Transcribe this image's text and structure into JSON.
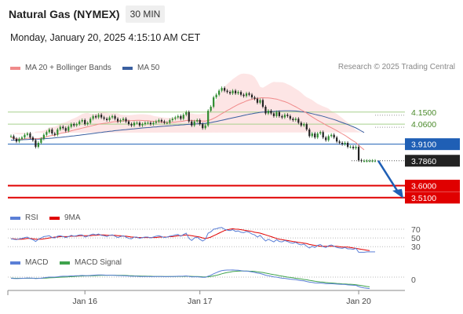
{
  "header": {
    "title": "Natural Gas (NYMEX)",
    "timeframe": "30 MIN",
    "datetime": "Monday, January 20, 2025 4:15:10 AM CET"
  },
  "legend": {
    "ma20": "MA 20 + Bollinger Bands",
    "ma50": "MA 50",
    "research": "Research © 2025 Trading Central",
    "rsi": "RSI",
    "rsi_ma": "9MA",
    "macd": "MACD",
    "macd_signal": "MACD Signal"
  },
  "colors": {
    "ma20": "#f08a8a",
    "ma50": "#3a5fa0",
    "bollinger": "#fde0e0",
    "support": "#e00000",
    "resistance": "#a8d08d",
    "pivot": "#1f5fb5",
    "rsi": "#5b7fd6",
    "rsi_ma": "#e00000",
    "macd": "#5b7fd6",
    "macd_signal": "#3fa34d",
    "candle_up": "#2e8b2e",
    "candle_down": "#222222"
  },
  "chart_data": {
    "type": "candlestick",
    "x_ticks": [
      "Jan 16",
      "Jan 17",
      "Jan 20"
    ],
    "ylim": [
      3.45,
      4.36
    ],
    "levels": [
      {
        "label": "4.1500",
        "value": 4.15,
        "kind": "resistance"
      },
      {
        "label": "4.0600",
        "value": 4.06,
        "kind": "resistance"
      },
      {
        "label": "3.9100",
        "value": 3.91,
        "kind": "pivot"
      },
      {
        "label": "3.7860",
        "value": 3.786,
        "kind": "last"
      },
      {
        "label": "3.6000",
        "value": 3.6,
        "kind": "support"
      },
      {
        "label": "3.5100",
        "value": 3.51,
        "kind": "support"
      }
    ],
    "close": [
      3.97,
      3.95,
      3.93,
      3.95,
      3.96,
      3.98,
      3.99,
      3.96,
      3.94,
      3.89,
      3.92,
      3.95,
      3.98,
      4.0,
      4.02,
      3.99,
      3.98,
      4.02,
      4.04,
      4.03,
      4.01,
      4.04,
      4.06,
      4.05,
      4.06,
      4.08,
      4.09,
      4.06,
      4.07,
      4.1,
      4.12,
      4.11,
      4.13,
      4.11,
      4.1,
      4.09,
      4.11,
      4.12,
      4.1,
      4.08,
      4.09,
      4.1,
      4.08,
      4.06,
      4.05,
      4.07,
      4.07,
      4.05,
      4.06,
      4.07,
      4.07,
      4.06,
      4.07,
      4.08,
      4.09,
      4.08,
      4.07,
      4.07,
      4.09,
      4.1,
      4.11,
      4.12,
      4.1,
      4.13,
      4.15,
      4.08,
      4.05,
      4.08,
      4.09,
      4.06,
      4.03,
      4.05,
      4.16,
      4.19,
      4.26,
      4.28,
      4.31,
      4.33,
      4.31,
      4.3,
      4.29,
      4.31,
      4.29,
      4.3,
      4.28,
      4.27,
      4.29,
      4.28,
      4.26,
      4.25,
      4.22,
      4.24,
      4.19,
      4.14,
      4.16,
      4.14,
      4.12,
      4.15,
      4.12,
      4.11,
      4.13,
      4.12,
      4.1,
      4.09,
      4.1,
      4.07,
      4.05,
      4.06,
      4.02,
      3.97,
      3.99,
      3.96,
      3.99,
      4.0,
      3.96,
      3.94,
      3.97,
      3.98,
      3.96,
      3.93,
      3.92,
      3.91,
      3.92,
      3.89,
      3.89,
      3.88,
      3.89,
      3.79,
      3.785,
      3.785,
      3.786,
      3.786,
      3.786,
      3.786
    ],
    "ma20": [
      3.96,
      3.955,
      3.95,
      3.948,
      3.948,
      3.95,
      3.955,
      3.955,
      3.953,
      3.95,
      3.952,
      3.955,
      3.96,
      3.965,
      3.972,
      3.975,
      3.978,
      3.985,
      3.99,
      3.995,
      3.998,
      4.003,
      4.01,
      4.015,
      4.02,
      4.025,
      4.03,
      4.035,
      4.04,
      4.045,
      4.05,
      4.055,
      4.06,
      4.063,
      4.066,
      4.068,
      4.072,
      4.076,
      4.078,
      4.08,
      4.082,
      4.084,
      4.085,
      4.086,
      4.086,
      4.087,
      4.088,
      4.088,
      4.087,
      4.086,
      4.085,
      4.083,
      4.081,
      4.079,
      4.077,
      4.075,
      4.073,
      4.072,
      4.072,
      4.073,
      4.075,
      4.078,
      4.08,
      4.083,
      4.087,
      4.088,
      4.087,
      4.086,
      4.086,
      4.085,
      4.083,
      4.083,
      4.087,
      4.093,
      4.103,
      4.113,
      4.125,
      4.138,
      4.15,
      4.162,
      4.173,
      4.185,
      4.196,
      4.207,
      4.216,
      4.224,
      4.233,
      4.24,
      4.245,
      4.25,
      4.252,
      4.256,
      4.257,
      4.256,
      4.256,
      4.254,
      4.25,
      4.247,
      4.241,
      4.234,
      4.228,
      4.22,
      4.211,
      4.2,
      4.19,
      4.178,
      4.166,
      4.155,
      4.142,
      4.127,
      4.114,
      4.101,
      4.089,
      4.078,
      4.066,
      4.054,
      4.043,
      4.033,
      4.022,
      4.011,
      3.999,
      3.987,
      3.976,
      3.962,
      3.948,
      3.935,
      3.922,
      3.902,
      3.884,
      3.868
    ],
    "ma50": [
      3.94,
      3.94,
      3.941,
      3.942,
      3.943,
      3.944,
      3.945,
      3.946,
      3.947,
      3.947,
      3.948,
      3.949,
      3.95,
      3.952,
      3.954,
      3.955,
      3.957,
      3.959,
      3.961,
      3.963,
      3.965,
      3.967,
      3.97,
      3.972,
      3.975,
      3.977,
      3.98,
      3.982,
      3.985,
      3.987,
      3.99,
      3.993,
      3.996,
      3.998,
      4.001,
      4.003,
      4.006,
      4.008,
      4.011,
      4.013,
      4.015,
      4.017,
      4.019,
      4.021,
      4.023,
      4.025,
      4.027,
      4.029,
      4.031,
      4.033,
      4.034,
      4.036,
      4.038,
      4.039,
      4.041,
      4.043,
      4.044,
      4.046,
      4.047,
      4.049,
      4.051,
      4.052,
      4.054,
      4.055,
      4.057,
      4.058,
      4.059,
      4.061,
      4.062,
      4.063,
      4.064,
      4.066,
      4.069,
      4.072,
      4.076,
      4.08,
      4.084,
      4.089,
      4.093,
      4.098,
      4.102,
      4.107,
      4.111,
      4.116,
      4.12,
      4.125,
      4.129,
      4.134,
      4.137,
      4.141,
      4.144,
      4.148,
      4.15,
      4.151,
      4.153,
      4.154,
      4.155,
      4.157,
      4.158,
      4.159,
      4.16,
      4.16,
      4.16,
      4.159,
      4.158,
      4.156,
      4.153,
      4.151,
      4.148,
      4.143,
      4.138,
      4.133,
      4.128,
      4.124,
      4.118,
      4.112,
      4.106,
      4.1,
      4.094,
      4.087,
      4.079,
      4.072,
      4.064,
      4.057,
      4.048,
      4.04,
      4.031,
      4.02,
      4.008,
      3.997
    ],
    "rsi": [
      48,
      47,
      46,
      48,
      49,
      51,
      52,
      48,
      46,
      42,
      47,
      50,
      53,
      54,
      55,
      51,
      50,
      54,
      55,
      53,
      51,
      53,
      56,
      54,
      55,
      57,
      57,
      52,
      54,
      57,
      59,
      57,
      59,
      56,
      55,
      53,
      56,
      57,
      54,
      51,
      53,
      55,
      52,
      49,
      48,
      52,
      52,
      49,
      51,
      52,
      52,
      50,
      52,
      54,
      55,
      53,
      51,
      52,
      54,
      55,
      57,
      58,
      54,
      58,
      61,
      49,
      44,
      50,
      52,
      47,
      43,
      47,
      61,
      64,
      70,
      71,
      73,
      74,
      70,
      68,
      67,
      69,
      65,
      66,
      63,
      62,
      65,
      63,
      59,
      57,
      52,
      56,
      49,
      43,
      47,
      44,
      41,
      46,
      42,
      41,
      44,
      42,
      39,
      38,
      40,
      36,
      34,
      36,
      31,
      27,
      31,
      28,
      33,
      35,
      30,
      28,
      32,
      34,
      31,
      28,
      27,
      26,
      28,
      25,
      25,
      24,
      26,
      17,
      17,
      17,
      18,
      18,
      18,
      18
    ],
    "rsi_ma": [
      48,
      48,
      47,
      47,
      47,
      48,
      49,
      49,
      48,
      47,
      47,
      47,
      48,
      49,
      50,
      51,
      52,
      52,
      53,
      53,
      53,
      53,
      54,
      54,
      54,
      55,
      55,
      55,
      55,
      55,
      56,
      56,
      57,
      57,
      57,
      56,
      56,
      56,
      56,
      55,
      55,
      54,
      54,
      53,
      52,
      52,
      51,
      51,
      51,
      51,
      51,
      51,
      51,
      51,
      52,
      52,
      52,
      52,
      53,
      53,
      54,
      55,
      55,
      56,
      57,
      56,
      55,
      54,
      53,
      52,
      50,
      49,
      50,
      52,
      55,
      58,
      61,
      64,
      67,
      69,
      70,
      71,
      70,
      70,
      69,
      68,
      67,
      66,
      65,
      63,
      62,
      61,
      59,
      57,
      55,
      53,
      51,
      49,
      47,
      46,
      45,
      44,
      43,
      42,
      41,
      40,
      39,
      38,
      37,
      35,
      34,
      33,
      32,
      31,
      31,
      31,
      31,
      31,
      31,
      31,
      30,
      29,
      29,
      29,
      28,
      27,
      26,
      25,
      24,
      23,
      22,
      21
    ],
    "macd": [
      -0.01,
      -0.012,
      -0.013,
      -0.012,
      -0.011,
      -0.009,
      -0.007,
      -0.008,
      -0.009,
      -0.013,
      -0.011,
      -0.009,
      -0.006,
      -0.003,
      0.0,
      0.0,
      0.0,
      0.003,
      0.006,
      0.007,
      0.007,
      0.008,
      0.01,
      0.011,
      0.012,
      0.013,
      0.014,
      0.013,
      0.013,
      0.014,
      0.016,
      0.017,
      0.018,
      0.018,
      0.017,
      0.016,
      0.016,
      0.016,
      0.015,
      0.013,
      0.013,
      0.012,
      0.011,
      0.009,
      0.007,
      0.007,
      0.007,
      0.005,
      0.005,
      0.005,
      0.005,
      0.004,
      0.004,
      0.005,
      0.005,
      0.005,
      0.004,
      0.004,
      0.005,
      0.005,
      0.006,
      0.007,
      0.007,
      0.008,
      0.01,
      0.006,
      0.002,
      0.003,
      0.003,
      0.001,
      -0.002,
      -0.002,
      0.008,
      0.016,
      0.028,
      0.038,
      0.047,
      0.055,
      0.058,
      0.06,
      0.06,
      0.061,
      0.059,
      0.058,
      0.055,
      0.052,
      0.051,
      0.048,
      0.044,
      0.04,
      0.034,
      0.031,
      0.024,
      0.016,
      0.012,
      0.007,
      0.002,
      0.0,
      -0.005,
      -0.009,
      -0.011,
      -0.014,
      -0.017,
      -0.02,
      -0.022,
      -0.026,
      -0.03,
      -0.032,
      -0.037,
      -0.043,
      -0.045,
      -0.049,
      -0.05,
      -0.05,
      -0.053,
      -0.056,
      -0.056,
      -0.056,
      -0.057,
      -0.059,
      -0.061,
      -0.062,
      -0.063,
      -0.066,
      -0.067,
      -0.069,
      -0.07,
      -0.08,
      -0.087,
      -0.092,
      -0.095,
      -0.097
    ],
    "macd_signal": [
      -0.008,
      -0.009,
      -0.01,
      -0.01,
      -0.01,
      -0.01,
      -0.01,
      -0.01,
      -0.01,
      -0.01,
      -0.01,
      -0.01,
      -0.009,
      -0.008,
      -0.006,
      -0.005,
      -0.004,
      -0.003,
      -0.001,
      0.0,
      0.001,
      0.003,
      0.004,
      0.005,
      0.007,
      0.008,
      0.009,
      0.01,
      0.011,
      0.011,
      0.012,
      0.013,
      0.014,
      0.015,
      0.015,
      0.015,
      0.016,
      0.016,
      0.016,
      0.015,
      0.015,
      0.015,
      0.014,
      0.013,
      0.012,
      0.011,
      0.01,
      0.009,
      0.008,
      0.008,
      0.007,
      0.007,
      0.006,
      0.006,
      0.006,
      0.006,
      0.005,
      0.005,
      0.005,
      0.005,
      0.005,
      0.006,
      0.006,
      0.006,
      0.007,
      0.007,
      0.006,
      0.005,
      0.005,
      0.004,
      0.003,
      0.002,
      0.003,
      0.006,
      0.01,
      0.015,
      0.021,
      0.028,
      0.034,
      0.039,
      0.043,
      0.047,
      0.049,
      0.051,
      0.052,
      0.052,
      0.052,
      0.051,
      0.05,
      0.048,
      0.045,
      0.042,
      0.039,
      0.034,
      0.03,
      0.025,
      0.021,
      0.017,
      0.012,
      0.008,
      0.004,
      0.0,
      -0.003,
      -0.006,
      -0.01,
      -0.013,
      -0.016,
      -0.02,
      -0.023,
      -0.027,
      -0.031,
      -0.035,
      -0.038,
      -0.041,
      -0.043,
      -0.046,
      -0.048,
      -0.05,
      -0.052,
      -0.054,
      -0.055,
      -0.057,
      -0.058,
      -0.06,
      -0.061,
      -0.063,
      -0.065,
      -0.068,
      -0.072,
      -0.076,
      -0.08,
      -0.083
    ],
    "rsi_levels": [
      {
        "label": "70",
        "value": 70
      },
      {
        "label": "50",
        "value": 50
      },
      {
        "label": "30",
        "value": 30
      }
    ],
    "macd_zero_label": "0"
  }
}
